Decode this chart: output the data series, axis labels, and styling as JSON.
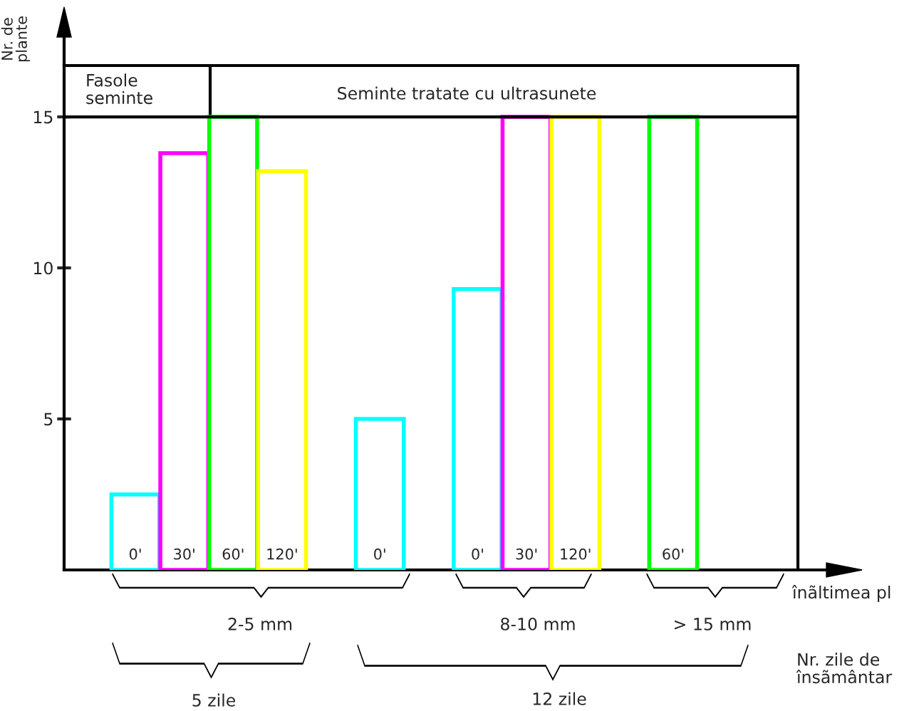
{
  "chart_data": {
    "type": "bar",
    "categories": [
      "0'",
      "30'",
      "60'",
      "120'",
      null,
      "0'",
      null,
      "0'",
      "30'",
      "120'",
      null,
      "60'"
    ],
    "values": [
      2.5,
      13.8,
      15,
      13.2,
      null,
      5.0,
      null,
      9.3,
      15,
      15,
      null,
      15
    ],
    "colors": [
      "#00ffff",
      "#ff00ff",
      "#00ff00",
      "#ffff00",
      null,
      "#00ffff",
      null,
      "#00ffff",
      "#ff00ff",
      "#ffff00",
      null,
      "#00ff00"
    ],
    "ylabel": "Nr. de\nplante",
    "ylim": [
      0,
      16.7
    ],
    "yticks": [
      5,
      10,
      15
    ],
    "ref_lines": [
      {
        "axis": "y",
        "value": 15
      }
    ],
    "grid": false,
    "legend": false,
    "annotations": [
      "Fasole\nseminte",
      "Seminte tratate cu ultrasunete",
      "2-5 mm",
      "8-10 mm",
      "> 15 mm",
      "5 zile",
      "12 zile",
      "Nr. zile de\nînsãmântar",
      "înãltimea pl"
    ]
  }
}
